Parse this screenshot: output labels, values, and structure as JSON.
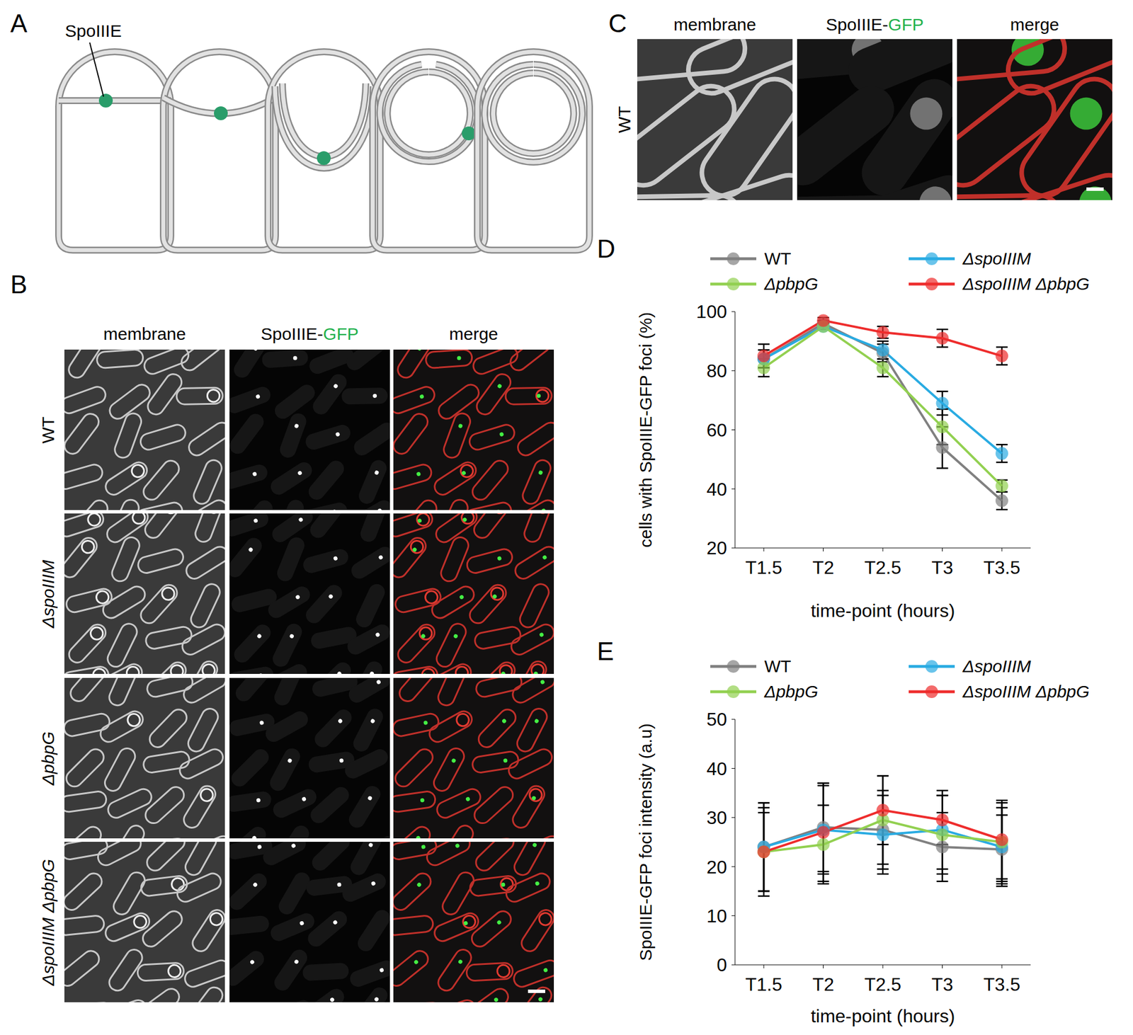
{
  "panels": {
    "A": {
      "label": "A",
      "annotation": "SpoIIIE"
    },
    "B": {
      "label": "B",
      "columns": [
        "membrane",
        "SpoIIIE-GFP",
        "merge"
      ],
      "rows": [
        "WT",
        "ΔspoIIIM",
        "ΔpbpG",
        "ΔspoIIIM ΔpbpG"
      ]
    },
    "C": {
      "label": "C",
      "columns": [
        "membrane",
        "SpoIIIE-GFP",
        "merge"
      ],
      "rows": [
        "WT"
      ]
    }
  },
  "chart_data": [
    {
      "panel_label": "D",
      "type": "line",
      "x_label": "time-point (hours)",
      "y_label": "cells with SpoIIIE-GFP foci (%)",
      "categories": [
        "T1.5",
        "T2",
        "T2.5",
        "T3",
        "T3.5"
      ],
      "ylim": [
        20,
        100
      ],
      "yticks": [
        20,
        40,
        60,
        80,
        100
      ],
      "marker": "circle",
      "series": [
        {
          "name": "WT",
          "color": "#808080",
          "values": [
            84,
            96,
            86,
            54,
            36
          ],
          "errors": [
            3,
            1,
            3,
            7,
            3
          ]
        },
        {
          "name": "ΔspoIIIM",
          "color": "#29abe2",
          "values": [
            84,
            95,
            87,
            69,
            52
          ],
          "errors": [
            3,
            1,
            3,
            4,
            3
          ]
        },
        {
          "name": "ΔpbpG",
          "color": "#92d050",
          "values": [
            81,
            95,
            81,
            61,
            41
          ],
          "errors": [
            3,
            1,
            3,
            6,
            2
          ]
        },
        {
          "name": "ΔspoIIIM ΔpbpG",
          "color": "#ee2c2c",
          "values": [
            85,
            97,
            93,
            91,
            85
          ],
          "errors": [
            4,
            1,
            2,
            3,
            3
          ]
        }
      ]
    },
    {
      "panel_label": "E",
      "type": "line",
      "x_label": "time-point (hours)",
      "y_label": "SpoIIIE-GFP foci intensity (a.u)",
      "categories": [
        "T1.5",
        "T2",
        "T2.5",
        "T3",
        "T3.5"
      ],
      "ylim": [
        0,
        50
      ],
      "yticks": [
        0,
        10,
        20,
        30,
        40,
        50
      ],
      "marker": "circle",
      "series": [
        {
          "name": "WT",
          "color": "#808080",
          "values": [
            24,
            28,
            27.5,
            24,
            23.5
          ],
          "errors": [
            9,
            9,
            8,
            7,
            7
          ]
        },
        {
          "name": "ΔspoIIIM",
          "color": "#29abe2",
          "values": [
            24,
            27.5,
            26.5,
            27.5,
            24
          ],
          "errors": [
            9,
            9,
            8,
            8,
            8
          ]
        },
        {
          "name": "ΔpbpG",
          "color": "#92d050",
          "values": [
            23,
            24.5,
            29.5,
            26.5,
            25
          ],
          "errors": [
            8,
            8,
            9,
            8,
            8
          ]
        },
        {
          "name": "ΔspoIIIM ΔpbpG",
          "color": "#ee2c2c",
          "values": [
            23,
            27,
            31.5,
            29.5,
            25.5
          ],
          "errors": [
            9,
            10,
            7,
            5,
            8
          ]
        }
      ]
    }
  ]
}
